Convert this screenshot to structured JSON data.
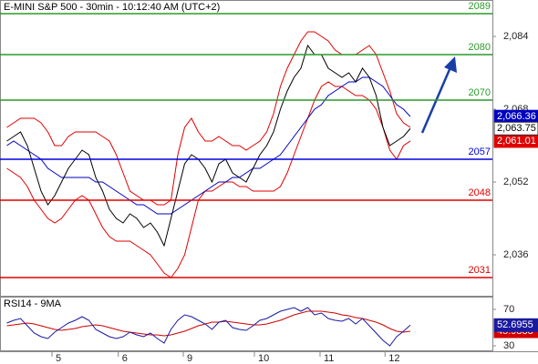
{
  "chart_data": [
    {
      "type": "line",
      "title": "E-MINI S&P 500 - 30min - 10:12:40 AM (UTC+2)",
      "x": [
        1,
        2,
        3,
        4,
        5,
        6,
        7,
        8,
        9,
        10,
        11,
        12,
        13,
        14,
        15,
        16,
        17,
        18,
        19,
        20,
        21,
        22,
        23,
        24,
        25,
        26,
        27,
        28,
        29,
        30,
        31,
        32,
        33,
        34,
        35,
        36,
        37,
        38,
        39,
        40,
        41,
        42,
        43,
        44,
        45,
        46,
        47,
        48,
        49,
        50,
        51,
        52,
        53,
        54,
        55,
        56,
        57,
        58,
        59,
        60
      ],
      "xlim": [
        0,
        72
      ],
      "xticks": [
        {
          "value": 7.6,
          "label": "5"
        },
        {
          "value": 17.3,
          "label": "6"
        },
        {
          "value": 26.8,
          "label": "9"
        },
        {
          "value": 37.2,
          "label": "10"
        },
        {
          "value": 46.8,
          "label": "11"
        },
        {
          "value": 56.3,
          "label": "12"
        }
      ],
      "ylim": [
        2027,
        2092
      ],
      "yticks": [
        {
          "value": 2084,
          "label": "2,084"
        },
        {
          "value": 2068,
          "label": "2,068"
        },
        {
          "value": 2052,
          "label": "2,052"
        },
        {
          "value": 2036,
          "label": "2,036"
        }
      ],
      "levels": [
        {
          "value": 2089,
          "color": "#2a9a2a"
        },
        {
          "value": 2080,
          "color": "#2a9a2a"
        },
        {
          "value": 2070,
          "color": "#2a9a2a"
        },
        {
          "value": 2057,
          "color": "#0000e0"
        },
        {
          "value": 2048,
          "color": "#e00000"
        },
        {
          "value": 2031,
          "color": "#e00000"
        }
      ],
      "series": [
        {
          "color": "#e00000",
          "values": [
            2064,
            2065,
            2066,
            2066,
            2066,
            2065,
            2063,
            2060,
            2060,
            2062,
            2063,
            2063,
            2063,
            2063,
            2062,
            2061,
            2058,
            2054,
            2050,
            2049,
            2048,
            2048,
            2047,
            2047,
            2048,
            2058,
            2064,
            2066,
            2063,
            2061,
            2061,
            2062,
            2061,
            2060,
            2060,
            2059,
            2060,
            2061,
            2063,
            2067,
            2073,
            2077,
            2080,
            2083,
            2085,
            2085,
            2084,
            2083,
            2081,
            2080,
            2080,
            2080,
            2081,
            2082,
            2080,
            2076,
            2072,
            2067,
            2065,
            2064
          ]
        },
        {
          "color": "#e00000",
          "values": [
            2055,
            2054,
            2053,
            2051,
            2048,
            2046,
            2044,
            2043,
            2044,
            2046,
            2048,
            2049,
            2048,
            2045,
            2042,
            2040,
            2039,
            2039,
            2039,
            2038,
            2037,
            2036,
            2034,
            2032,
            2031,
            2033,
            2036,
            2042,
            2048,
            2050,
            2050,
            2051,
            2052,
            2052,
            2051,
            2051,
            2050,
            2050,
            2050,
            2050,
            2051,
            2054,
            2058,
            2062,
            2066,
            2070,
            2073,
            2074,
            2073,
            2073,
            2072,
            2071,
            2071,
            2070,
            2068,
            2064,
            2059,
            2057,
            2060,
            2061.01
          ],
          "value_labels": [
            null,
            null,
            null,
            null,
            null,
            null,
            null,
            null,
            null,
            null,
            null,
            null,
            null,
            null,
            null,
            null,
            null,
            null,
            null,
            null,
            null,
            null,
            null,
            null,
            null,
            null,
            null,
            null,
            null,
            null,
            null,
            null,
            null,
            null,
            null,
            null,
            null,
            null,
            null,
            null,
            null,
            null,
            null,
            null,
            null,
            null,
            null,
            null,
            null,
            null,
            null,
            null,
            null,
            null,
            null,
            null,
            null,
            null,
            null,
            "2,061.01"
          ]
        },
        {
          "color": "#0000c0",
          "values": [
            2060,
            2061,
            2060,
            2059,
            2058,
            2057,
            2055,
            2054,
            2053,
            2053,
            2053,
            2053,
            2053,
            2052,
            2052,
            2051,
            2050,
            2049,
            2048,
            2047,
            2047,
            2046,
            2045,
            2045,
            2045,
            2046,
            2047,
            2048,
            2049,
            2050,
            2051,
            2052,
            2052,
            2053,
            2053,
            2054,
            2055,
            2055,
            2056,
            2057,
            2058,
            2060,
            2062,
            2064,
            2066,
            2068,
            2069,
            2071,
            2072,
            2073,
            2074,
            2074,
            2075,
            2075,
            2074,
            2073,
            2071,
            2069,
            2068,
            2066.36
          ],
          "value_labels": [
            null,
            null,
            null,
            null,
            null,
            null,
            null,
            null,
            null,
            null,
            null,
            null,
            null,
            null,
            null,
            null,
            null,
            null,
            null,
            null,
            null,
            null,
            null,
            null,
            null,
            null,
            null,
            null,
            null,
            null,
            null,
            null,
            null,
            null,
            null,
            null,
            null,
            null,
            null,
            null,
            null,
            null,
            null,
            null,
            null,
            null,
            null,
            null,
            null,
            null,
            null,
            null,
            null,
            null,
            null,
            null,
            null,
            null,
            null,
            "2,066.36"
          ]
        },
        {
          "color": "#000000",
          "values": [
            2061,
            2062,
            2063,
            2060,
            2055,
            2050,
            2047,
            2049,
            2052,
            2055,
            2057,
            2059,
            2058,
            2053,
            2050,
            2046,
            2044,
            2043,
            2045,
            2044,
            2042,
            2043,
            2041,
            2038,
            2044,
            2050,
            2056,
            2058,
            2057,
            2055,
            2052,
            2056,
            2057,
            2054,
            2053,
            2052,
            2055,
            2058,
            2060,
            2063,
            2068,
            2072,
            2075,
            2077,
            2082,
            2080,
            2080,
            2077,
            2076,
            2075,
            2076,
            2074,
            2077,
            2075,
            2071,
            2064,
            2060,
            2061,
            2062,
            2063.75
          ],
          "value_labels": [
            null,
            null,
            null,
            null,
            null,
            null,
            null,
            null,
            null,
            null,
            null,
            null,
            null,
            null,
            null,
            null,
            null,
            null,
            null,
            null,
            null,
            null,
            null,
            null,
            null,
            null,
            null,
            null,
            null,
            null,
            null,
            null,
            null,
            null,
            null,
            null,
            null,
            null,
            null,
            null,
            null,
            null,
            null,
            null,
            null,
            null,
            null,
            null,
            null,
            null,
            null,
            null,
            null,
            null,
            null,
            null,
            null,
            null,
            null,
            "2,063.75"
          ]
        }
      ]
    },
    {
      "type": "line",
      "title": "RSI14 - 9MA",
      "x": [
        1,
        2,
        3,
        4,
        5,
        6,
        7,
        8,
        9,
        10,
        11,
        12,
        13,
        14,
        15,
        16,
        17,
        18,
        19,
        20,
        21,
        22,
        23,
        24,
        25,
        26,
        27,
        28,
        29,
        30,
        31,
        32,
        33,
        34,
        35,
        36,
        37,
        38,
        39,
        40,
        41,
        42,
        43,
        44,
        45,
        46,
        47,
        48,
        49,
        50,
        51,
        52,
        53,
        54,
        55,
        56,
        57,
        58,
        59,
        60
      ],
      "xlim": [
        0,
        72
      ],
      "ylim": [
        24,
        84
      ],
      "yticks": [
        70,
        30
      ],
      "series": [
        {
          "color": "#d00000",
          "values": [
            52,
            53,
            54,
            55,
            54,
            52,
            50,
            48,
            47,
            48,
            49,
            51,
            52,
            53,
            52,
            50,
            48,
            46,
            45,
            44,
            43,
            42,
            42,
            41,
            42,
            44,
            46,
            49,
            52,
            54,
            56,
            56,
            57,
            56,
            55,
            54,
            53,
            53,
            54,
            56,
            58,
            61,
            64,
            66,
            68,
            68,
            68,
            67,
            66,
            64,
            63,
            61,
            60,
            58,
            56,
            53,
            49,
            46,
            45,
            45.9888
          ]
        },
        {
          "color": "#1a1aa0",
          "values": [
            55,
            58,
            60,
            52,
            44,
            40,
            38,
            45,
            50,
            55,
            58,
            62,
            58,
            48,
            44,
            40,
            38,
            40,
            45,
            42,
            40,
            44,
            38,
            33,
            48,
            58,
            64,
            62,
            58,
            54,
            48,
            56,
            58,
            50,
            48,
            47,
            52,
            58,
            60,
            64,
            68,
            70,
            72,
            68,
            72,
            64,
            66,
            60,
            58,
            57,
            60,
            54,
            60,
            52,
            44,
            36,
            30,
            40,
            46,
            52.6955
          ]
        }
      ]
    }
  ]
}
